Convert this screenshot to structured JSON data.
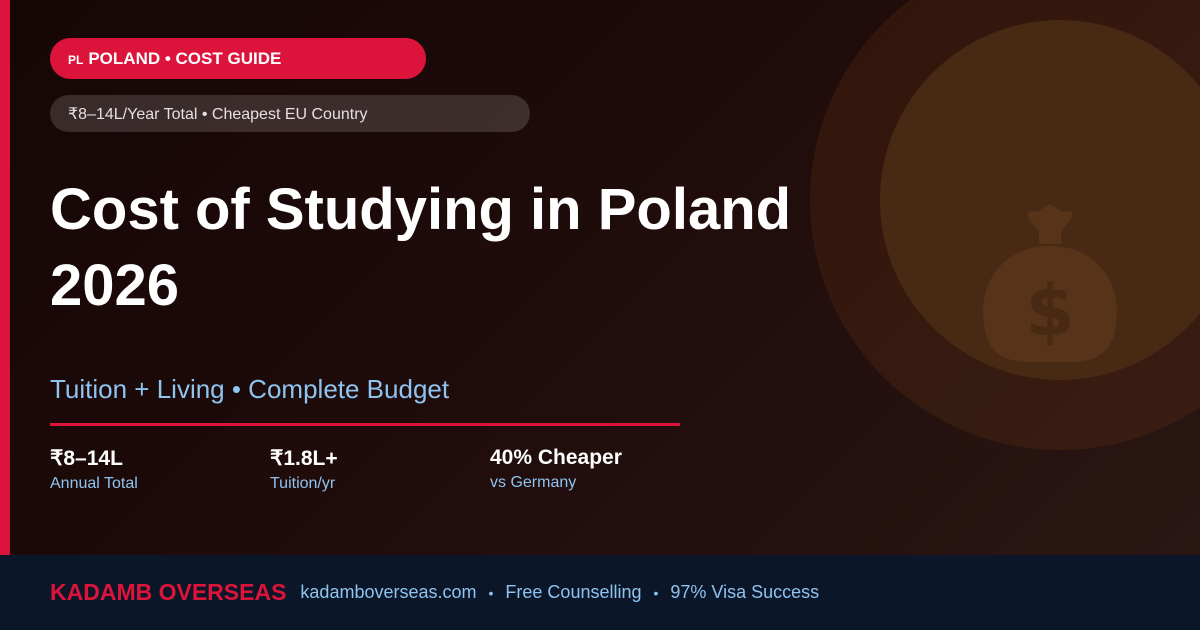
{
  "colors": {
    "accent": "#dc143c",
    "footer_bg": "#0b1628",
    "subtext": "#8fc3f0"
  },
  "badge": {
    "flag": "PL",
    "label": "POLAND • COST GUIDE"
  },
  "tagline": "₹8–14L/Year Total • Cheapest EU Country",
  "title_line1": "Cost of Studying in Poland",
  "title_line2": "2026",
  "subtitle": "Tuition + Living • Complete Budget",
  "stats": [
    {
      "value": "₹8–14L",
      "label": "Annual Total"
    },
    {
      "value": "₹1.8L+",
      "label": "Tuition/yr"
    },
    {
      "value": "40% Cheaper",
      "label": "vs Germany"
    }
  ],
  "hero_icon": "money-bag-icon",
  "footer": {
    "brand": "KADAMB OVERSEAS",
    "website": "kadamboverseas.com",
    "separator": "•",
    "item1": "Free Counselling",
    "item2": "97% Visa Success"
  }
}
